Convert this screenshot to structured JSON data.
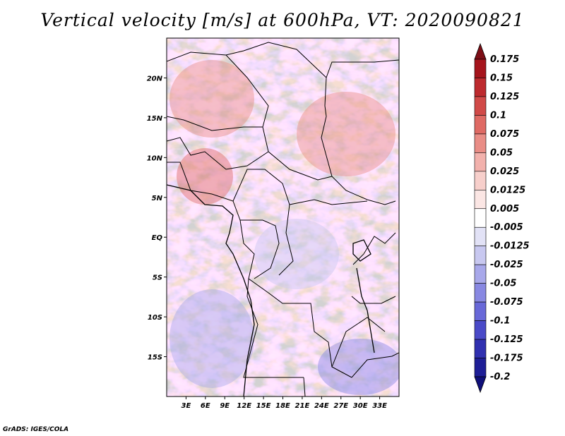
{
  "title": "Vertical velocity [m/s] at 600hPa, VT: 2020090821",
  "credit": "GrADS: IGES/COLA",
  "map": {
    "lon_range": [
      0,
      36
    ],
    "lat_range": [
      -20,
      25
    ],
    "lon_ticks": [
      {
        "value": 3,
        "label": "3E"
      },
      {
        "value": 6,
        "label": "6E"
      },
      {
        "value": 9,
        "label": "9E"
      },
      {
        "value": 12,
        "label": "12E"
      },
      {
        "value": 15,
        "label": "15E"
      },
      {
        "value": 18,
        "label": "18E"
      },
      {
        "value": 21,
        "label": "21E"
      },
      {
        "value": 24,
        "label": "24E"
      },
      {
        "value": 27,
        "label": "27E"
      },
      {
        "value": 30,
        "label": "30E"
      },
      {
        "value": 33,
        "label": "33E"
      }
    ],
    "lat_ticks": [
      {
        "value": 20,
        "label": "20N"
      },
      {
        "value": 15,
        "label": "15N"
      },
      {
        "value": 10,
        "label": "10N"
      },
      {
        "value": 5,
        "label": "5N"
      },
      {
        "value": 0,
        "label": "EQ"
      },
      {
        "value": -5,
        "label": "5S"
      },
      {
        "value": -10,
        "label": "10S"
      },
      {
        "value": -15,
        "label": "15S"
      }
    ],
    "overlay": "country-borders-and-coastlines"
  },
  "colorbar": {
    "labels": [
      "0.175",
      "0.15",
      "0.125",
      "0.1",
      "0.075",
      "0.05",
      "0.025",
      "0.0125",
      "0.005",
      "-0.005",
      "-0.0125",
      "-0.025",
      "-0.05",
      "-0.075",
      "-0.1",
      "-0.125",
      "-0.175",
      "-0.2"
    ],
    "colors": [
      "#7d0e16",
      "#a5141c",
      "#bd2a2e",
      "#d14a48",
      "#df6a64",
      "#e98d86",
      "#f2b1ac",
      "#f7cfcb",
      "#fbe6e4",
      "#ffffff",
      "#e2e2f6",
      "#c8c8f0",
      "#a8a8ea",
      "#8888e2",
      "#6868d8",
      "#4a4ac8",
      "#3030b0",
      "#1e1e96",
      "#0f0f7a"
    ]
  }
}
